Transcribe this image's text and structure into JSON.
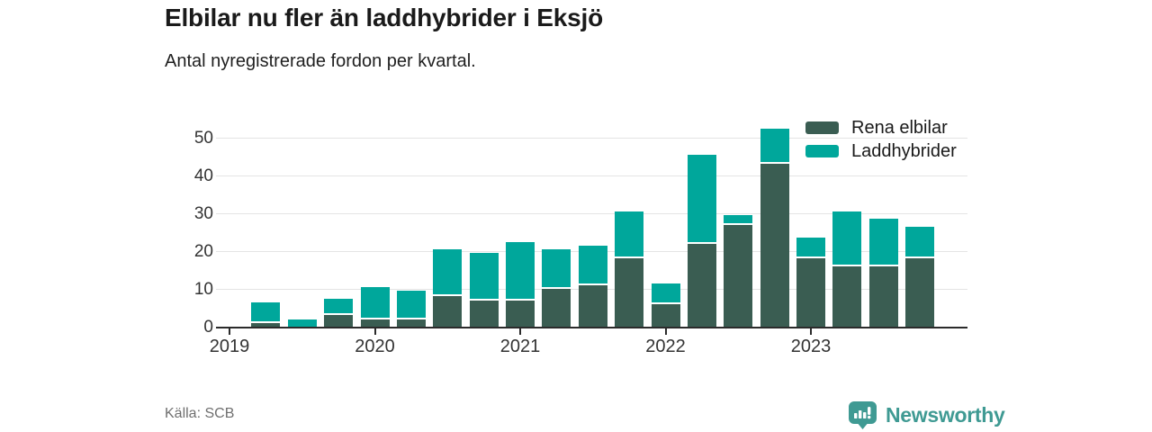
{
  "header": {
    "title": "Elbilar nu fler än laddhybrider i Eksjö",
    "subtitle": "Antal nyregistrerade fordon per kvartal."
  },
  "footer": {
    "source": "Källa: SCB",
    "brand": "Newsworthy",
    "brand_color": "#3f9a93"
  },
  "chart_data": {
    "type": "bar",
    "stacked": true,
    "title": "Elbilar nu fler än laddhybrider i Eksjö",
    "subtitle": "Antal nyregistrerade fordon per kvartal.",
    "categories": [
      "2019 Q1",
      "2019 Q2",
      "2019 Q3",
      "2019 Q4",
      "2020 Q1",
      "2020 Q2",
      "2020 Q3",
      "2020 Q4",
      "2021 Q1",
      "2021 Q2",
      "2021 Q3",
      "2021 Q4",
      "2022 Q1",
      "2022 Q2",
      "2022 Q3",
      "2022 Q4",
      "2023 Q1",
      "2023 Q2",
      "2023 Q3",
      "2023 Q4"
    ],
    "x_tick_labels": [
      "2019",
      "2020",
      "2021",
      "2022",
      "2023"
    ],
    "series": [
      {
        "name": "Rena elbilar",
        "color": "#3a5d52",
        "values": [
          0,
          1,
          0,
          3,
          2,
          2,
          8,
          7,
          7,
          10,
          11,
          18,
          6,
          22,
          27,
          43,
          18,
          16,
          16,
          18
        ]
      },
      {
        "name": "Laddhybrider",
        "color": "#00a79b",
        "values": [
          0,
          5,
          2,
          4,
          8,
          7,
          12,
          12,
          15,
          10,
          10,
          12,
          5,
          23,
          2,
          9,
          5,
          14,
          12,
          8
        ]
      }
    ],
    "totals": [
      0,
      6,
      2,
      7,
      10,
      9,
      20,
      19,
      22,
      20,
      21,
      30,
      11,
      45,
      29,
      52,
      23,
      30,
      28,
      26
    ],
    "ylim": [
      0,
      55
    ],
    "yticks": [
      0,
      10,
      20,
      30,
      40,
      50
    ],
    "ylabel": "",
    "xlabel": "",
    "grid": true,
    "legend_position": "top-right"
  }
}
